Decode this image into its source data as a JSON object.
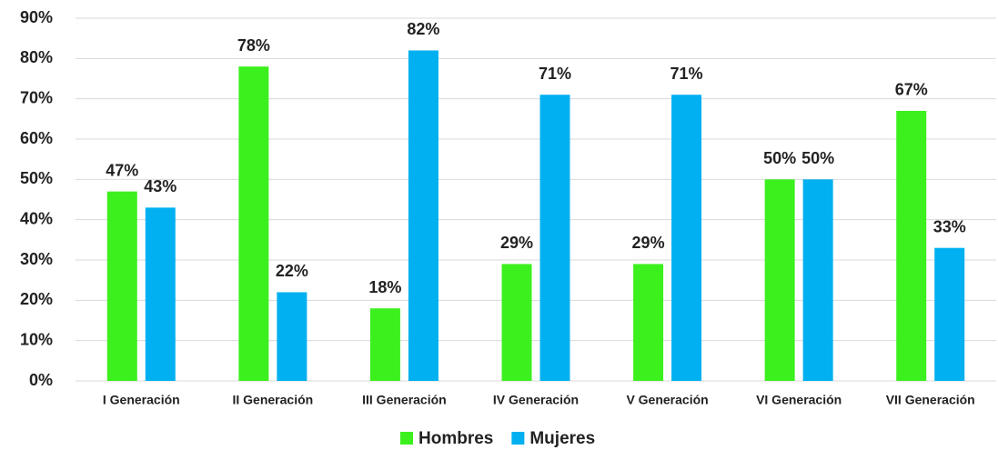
{
  "chart_data": {
    "type": "bar",
    "categories": [
      "I Generación",
      "II Generación",
      "III Generación",
      "IV Generación",
      "V Generación",
      "VI Generación",
      "VII Generación"
    ],
    "series": [
      {
        "name": "Hombres",
        "color": "#3cf01e",
        "values": [
          47,
          78,
          18,
          29,
          29,
          50,
          67
        ],
        "value_labels": [
          "47%",
          "78%",
          "18%",
          "29%",
          "29%",
          "50%",
          "67%"
        ]
      },
      {
        "name": "Mujeres",
        "color": "#00b0f0",
        "values": [
          43,
          22,
          82,
          71,
          71,
          50,
          33
        ],
        "value_labels": [
          "43%",
          "22%",
          "82%",
          "71%",
          "71%",
          "50%",
          "33%"
        ]
      }
    ],
    "ylim": [
      0,
      90
    ],
    "yticks": [
      {
        "value": 0,
        "label": "0%"
      },
      {
        "value": 10,
        "label": "10%"
      },
      {
        "value": 20,
        "label": "20%"
      },
      {
        "value": 30,
        "label": "30%"
      },
      {
        "value": 40,
        "label": "40%"
      },
      {
        "value": 50,
        "label": "50%"
      },
      {
        "value": 60,
        "label": "60%"
      },
      {
        "value": 70,
        "label": "70%"
      },
      {
        "value": 80,
        "label": "80%"
      },
      {
        "value": 90,
        "label": "90%"
      }
    ],
    "grid": true,
    "legend": "bottom"
  }
}
